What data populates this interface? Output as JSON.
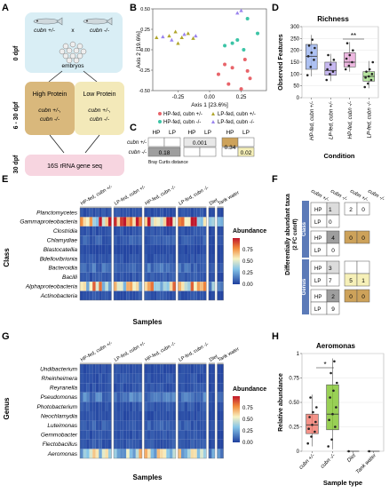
{
  "panels": {
    "A": "A",
    "B": "B",
    "C": "C",
    "D": "D",
    "E": "E",
    "F": "F",
    "G": "G",
    "H": "H"
  },
  "panel_a": {
    "stages": [
      "0 dpf",
      "6 - 30 dpf",
      "30 dpf"
    ],
    "parents": [
      "cubn +/-",
      "cubn -/-"
    ],
    "cross": "x",
    "embryos": "embryos",
    "high_protein": "High Protein",
    "low_protein": "Low Protein",
    "high_genotypes": [
      "cubn +/-,",
      "cubn -/-"
    ],
    "low_genotypes": [
      "cubn +/-,",
      "cubn -/-"
    ],
    "sequencing": "16S rRNA gene seq",
    "colors": {
      "top_box": "#d9eef5",
      "high_box": "#d9b87c",
      "low_box": "#f3e9b9",
      "seq_box": "#f7d5e0"
    }
  },
  "panel_b": {
    "xlabel": "Axis 1 [23.6%]",
    "ylabel": "Axis 2 [19.6%]",
    "legend": [
      "HP-fed, cubn +/-",
      "HP-fed, cubn -/-",
      "LP-fed, cubn +/-",
      "LP-fed, cubn -/-"
    ]
  },
  "panel_c": {
    "cols": [
      "HP",
      "LP",
      "HP",
      "LP",
      "HP",
      "LP"
    ],
    "rows": [
      "cubn +/-",
      "cubn -/-"
    ],
    "values": [
      "0.18",
      "0.001",
      "0.34",
      "0.02"
    ],
    "note": "Bray Curtis distance"
  },
  "panel_d": {
    "title": "Richness",
    "ylabel": "Observed Features",
    "xlabel": "Condition",
    "signif": "**"
  },
  "panel_e": {
    "ylabel": "Class",
    "xlabel": "Samples",
    "legend_title": "Abundance",
    "groups": [
      "HP-fed, cubn +/-",
      "LP-fed, cubn +/-",
      "HP-fed, cubn -/-",
      "LP-fed, cubn -/-",
      "Diet",
      "Tank water"
    ],
    "rows": [
      "Planctomycetes",
      "Gammaproteobacteria",
      "Clostridia",
      "Chlamydiae",
      "Blastocatellia",
      "Bdellovibrionia",
      "Bacteroidia",
      "Bacilli",
      "Alphaproteobacteria",
      "Actinobacteria"
    ]
  },
  "panel_f": {
    "ylabel": "Differentially abundant taxa",
    "ylabel2": "(2 FC cutoff)",
    "col_headers": [
      "cubn +/-",
      "cubn -/-",
      "cubn +/-",
      "cubn -/-"
    ],
    "class_label": "Class",
    "genus_label": "Genus",
    "row_labels": [
      "HP",
      "LP",
      "HP",
      "LP"
    ],
    "class_cells": {
      "a": "1",
      "b": "0",
      "c": "4",
      "d": "0",
      "e": "2",
      "f": "0",
      "g": "0",
      "h": "0"
    },
    "genus_cells": {
      "a": "3",
      "b": "7",
      "c": "2",
      "d": "9",
      "e": "5",
      "f": "1",
      "g": "0",
      "h": "0"
    }
  },
  "panel_g": {
    "ylabel": "Genus",
    "xlabel": "Samples",
    "legend_title": "Abundance",
    "groups": [
      "HP-fed, cubn +/-",
      "LP-fed, cubn +/-",
      "HP-fed, cubn -/-",
      "LP-fed, cubn -/-",
      "Diet",
      "Tank water"
    ],
    "rows": [
      "Undibacterium",
      "Rheinheimera",
      "Reyranella",
      "Pseudomonas",
      "Photobacterium",
      "Neochlamydia",
      "Luteimonas",
      "Gemmobacter",
      "Flectobacillus",
      "Aeromonas"
    ]
  },
  "panel_h": {
    "title": "Aeromonas",
    "ylabel": "Relative abundance",
    "xlabel": "Sample type",
    "signif": "*"
  },
  "chart_data": [
    {
      "type": "scatter",
      "panel": "B",
      "xlabel": "Axis 1 [23.6%]",
      "ylabel": "Axis 2 [19.6%]",
      "xlim": [
        -0.45,
        0.45
      ],
      "ylim": [
        -0.5,
        0.5
      ],
      "xticks": [
        -0.25,
        0.0,
        0.25
      ],
      "yticks": [
        -0.5,
        -0.25,
        0.0,
        0.25,
        0.5
      ],
      "series": [
        {
          "name": "HP-fed, cubn +/-",
          "color": "#e8646a",
          "shape": "circle",
          "points": [
            [
              0.12,
              -0.18
            ],
            [
              0.18,
              -0.22
            ],
            [
              0.28,
              -0.12
            ],
            [
              0.3,
              -0.26
            ],
            [
              0.32,
              -0.35
            ],
            [
              0.15,
              -0.42
            ],
            [
              0.25,
              -0.48
            ],
            [
              0.07,
              -0.3
            ]
          ]
        },
        {
          "name": "HP-fed, cubn -/-",
          "color": "#3cc4a6",
          "shape": "circle",
          "points": [
            [
              0.12,
              0.05
            ],
            [
              0.18,
              0.08
            ],
            [
              0.22,
              0.12
            ],
            [
              0.38,
              0.2
            ],
            [
              0.27,
              0.0
            ],
            [
              0.3,
              0.38
            ]
          ]
        },
        {
          "name": "LP-fed, cubn +/-",
          "color": "#b0a62c",
          "shape": "triangle",
          "points": [
            [
              -0.42,
              0.15
            ],
            [
              -0.32,
              0.17
            ],
            [
              -0.27,
              0.22
            ],
            [
              -0.22,
              0.15
            ],
            [
              -0.17,
              0.2
            ],
            [
              -0.13,
              0.14
            ],
            [
              -0.25,
              0.08
            ]
          ]
        },
        {
          "name": "LP-fed, cubn -/-",
          "color": "#9a84ee",
          "shape": "triangle",
          "points": [
            [
              -0.37,
              0.16
            ],
            [
              -0.3,
              0.12
            ],
            [
              -0.2,
              0.19
            ],
            [
              -0.11,
              0.17
            ],
            [
              0.22,
              0.45
            ],
            [
              0.25,
              0.48
            ]
          ]
        }
      ]
    },
    {
      "type": "box",
      "panel": "D",
      "title": "Richness",
      "ylabel": "Observed Features",
      "xlabel": "Condition",
      "ylim": [
        0,
        300
      ],
      "yticks": [
        0,
        50,
        100,
        150,
        200,
        250,
        300
      ],
      "categories": [
        "HP-fed, cubn +/-",
        "LP-fed, cubn +/-",
        "HP-fed, cubn -/-",
        "LP-fed, cubn -/-"
      ],
      "colors": [
        "#9ab3f0",
        "#b9a6ec",
        "#e8a5d8",
        "#a6e08a"
      ],
      "boxes": [
        {
          "min": 90,
          "q1": 120,
          "median": 175,
          "q3": 225,
          "max": 265
        },
        {
          "min": 70,
          "q1": 95,
          "median": 115,
          "q3": 150,
          "max": 185
        },
        {
          "min": 110,
          "q1": 130,
          "median": 150,
          "q3": 190,
          "max": 235
        },
        {
          "min": 40,
          "q1": 70,
          "median": 90,
          "q3": 110,
          "max": 155
        }
      ],
      "points": [
        [
          95,
          130,
          160,
          175,
          190,
          210,
          220,
          245
        ],
        [
          75,
          100,
          110,
          120,
          140,
          160,
          180
        ],
        [
          120,
          135,
          150,
          165,
          180,
          200,
          230
        ],
        [
          45,
          60,
          75,
          85,
          90,
          100,
          110,
          120,
          150
        ]
      ],
      "annotations": [
        {
          "text": "**",
          "between": [
            "HP-fed, cubn -/-",
            "LP-fed, cubn -/-"
          ]
        }
      ]
    },
    {
      "type": "heatmap",
      "panel": "E",
      "rows": [
        "Planctomycetes",
        "Gammaproteobacteria",
        "Clostridia",
        "Chlamydiae",
        "Blastocatellia",
        "Bdellovibrionia",
        "Bacteroidia",
        "Bacilli",
        "Alphaproteobacteria",
        "Actinobacteria"
      ],
      "groups": [
        "HP-fed, cubn +/-",
        "LP-fed, cubn +/-",
        "HP-fed, cubn -/-",
        "LP-fed, cubn -/-",
        "Diet",
        "Tank water"
      ],
      "group_sizes": [
        10,
        9,
        10,
        9,
        2,
        2
      ],
      "row_means": [
        0.05,
        0.72,
        0.05,
        0.08,
        0.03,
        0.05,
        0.12,
        0.06,
        0.55,
        0.05
      ],
      "color_scale": [
        0,
        0.25,
        0.5,
        0.75
      ],
      "legend_title": "Abundance"
    },
    {
      "type": "table",
      "panel": "F",
      "row_groups": [
        "Class",
        "Genus"
      ],
      "rows": [
        "HP",
        "LP"
      ],
      "columns": [
        "cubn +/-",
        "cubn -/-",
        "cubn +/-",
        "cubn -/-"
      ],
      "class": {
        "block1": [
          [
            "1",
            ""
          ],
          [
            "0",
            ""
          ]
        ],
        "block2": [
          [
            "",
            ""
          ],
          [
            "",
            "4"
          ]
        ],
        "block3": [
          [
            "2",
            "0"
          ],
          [
            "",
            ""
          ]
        ],
        "block4": [
          [
            "",
            "0"
          ],
          [
            "0",
            "0"
          ]
        ]
      },
      "genus": {
        "block1": [
          [
            "3",
            ""
          ],
          [
            "7",
            ""
          ]
        ],
        "block2": [
          [
            "",
            "2"
          ],
          [
            "",
            "9"
          ]
        ],
        "block3": [
          [
            "5",
            "1"
          ],
          [
            "",
            ""
          ]
        ],
        "block4": [
          [
            "0",
            "0"
          ],
          [
            "",
            ""
          ]
        ]
      }
    },
    {
      "type": "heatmap",
      "panel": "G",
      "rows": [
        "Undibacterium",
        "Rheinheimera",
        "Reyranella",
        "Pseudomonas",
        "Photobacterium",
        "Neochlamydia",
        "Luteimonas",
        "Gemmobacter",
        "Flectobacillus",
        "Aeromonas"
      ],
      "groups": [
        "HP-fed, cubn +/-",
        "LP-fed, cubn +/-",
        "HP-fed, cubn -/-",
        "LP-fed, cubn -/-",
        "Diet",
        "Tank water"
      ],
      "group_sizes": [
        10,
        9,
        10,
        9,
        2,
        2
      ],
      "row_means": [
        0.04,
        0.05,
        0.05,
        0.15,
        0.06,
        0.04,
        0.08,
        0.05,
        0.06,
        0.45
      ],
      "color_scale": [
        0,
        0.25,
        0.5,
        0.75
      ],
      "legend_title": "Abundance"
    },
    {
      "type": "box",
      "panel": "H",
      "title": "Aeromonas",
      "ylabel": "Relative abundance",
      "xlabel": "Sample type",
      "ylim": [
        0,
        1
      ],
      "yticks": [
        0,
        0.25,
        0.5,
        0.75,
        1
      ],
      "categories": [
        "cubn +/-",
        "cubn -/-",
        "Diet",
        "Tank water"
      ],
      "colors": [
        "#f2786c",
        "#7fc42c",
        "#888888",
        "#888888"
      ],
      "boxes": [
        {
          "min": 0.05,
          "q1": 0.18,
          "median": 0.27,
          "q3": 0.38,
          "max": 0.58
        },
        {
          "min": 0.02,
          "q1": 0.22,
          "median": 0.38,
          "q3": 0.68,
          "max": 0.95
        },
        {
          "min": 0,
          "q1": 0,
          "median": 0,
          "q3": 0,
          "max": 0
        },
        {
          "min": 0,
          "q1": 0,
          "median": 0,
          "q3": 0,
          "max": 0
        }
      ],
      "points": [
        [
          0.08,
          0.15,
          0.2,
          0.23,
          0.27,
          0.3,
          0.35,
          0.4,
          0.45,
          0.55
        ],
        [
          0.05,
          0.12,
          0.25,
          0.32,
          0.38,
          0.45,
          0.55,
          0.62,
          0.7,
          0.8,
          0.92
        ],
        [
          0.0
        ],
        [
          0.0
        ]
      ],
      "annotations": [
        {
          "text": "*",
          "between": [
            "cubn +/-",
            "cubn -/-"
          ]
        }
      ]
    }
  ]
}
